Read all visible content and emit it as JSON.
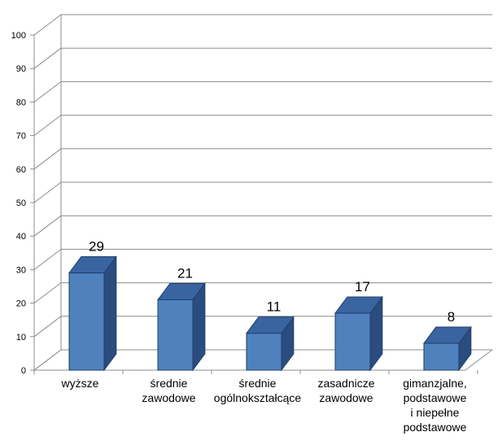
{
  "chart_data": {
    "type": "bar",
    "three_d": true,
    "categories": [
      [
        "wyższe"
      ],
      [
        "średnie",
        "zawodowe"
      ],
      [
        "średnie",
        "ogólnokształcące"
      ],
      [
        "zasadnicze",
        "zawodowe"
      ],
      [
        "gimanzjalne,",
        "podstawowe",
        "i niepełne",
        "podstawowe"
      ]
    ],
    "values": [
      29,
      21,
      11,
      17,
      8
    ],
    "data_labels": [
      "29",
      "21",
      "11",
      "17",
      "8"
    ],
    "ylim": [
      0,
      100
    ],
    "yticks": [
      "0",
      "10",
      "20",
      "30",
      "40",
      "50",
      "60",
      "70",
      "80",
      "90",
      "100"
    ],
    "grid": true,
    "legend": "none",
    "title": "",
    "xlabel": "",
    "ylabel": "",
    "colors": {
      "bar_front": "#4f81bd",
      "bar_top": "#3a64a0",
      "bar_side": "#2b4c7e",
      "bar_edge": "#1f3f6b",
      "grid": "#8c8c8c"
    }
  }
}
